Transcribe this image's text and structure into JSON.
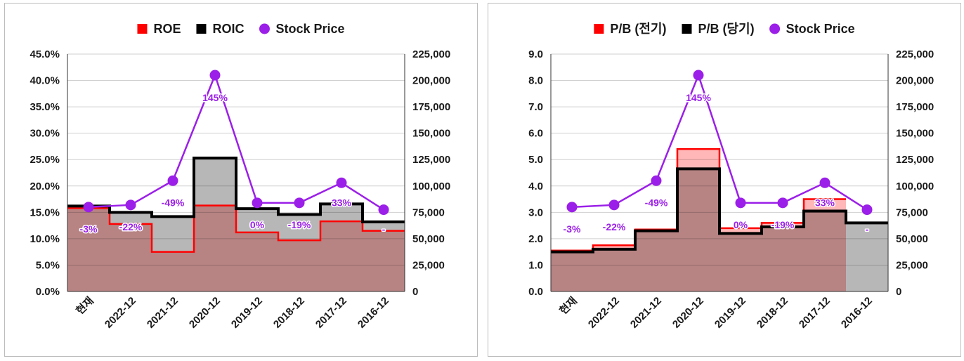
{
  "chart_data": [
    {
      "type": "line",
      "categories": [
        "현재",
        "2022-12",
        "2021-12",
        "2020-12",
        "2019-12",
        "2018-12",
        "2017-12",
        "2016-12"
      ],
      "legend_position": "top",
      "grid": true,
      "y_ticks": [
        "0.0%",
        "5.0%",
        "10.0%",
        "15.0%",
        "20.0%",
        "25.0%",
        "30.0%",
        "35.0%",
        "40.0%",
        "45.0%"
      ],
      "y2_ticks": [
        "0",
        "25,000",
        "50,000",
        "75,000",
        "100,000",
        "125,000",
        "150,000",
        "175,000",
        "200,000",
        "225,000"
      ],
      "ylim": [
        0,
        45
      ],
      "y2lim": [
        0,
        225000
      ],
      "series": [
        {
          "name": "ROE",
          "style": "step-area",
          "axis": "left",
          "color": "#ff0000",
          "fill": "#ffb3b3",
          "values": [
            15.8,
            12.8,
            7.5,
            16.3,
            11.2,
            9.7,
            13.3,
            11.5
          ]
        },
        {
          "name": "ROIC",
          "style": "step-area",
          "axis": "left",
          "color": "#000000",
          "fill": "#b3b3b3",
          "values": [
            16.2,
            15.0,
            14.2,
            25.3,
            15.7,
            14.6,
            16.6,
            13.2
          ]
        },
        {
          "name": "Stock Price",
          "style": "line-marker",
          "axis": "right",
          "color": "#9b1fe8",
          "values": [
            80000,
            82000,
            105000,
            205000,
            84000,
            84000,
            103000,
            77500
          ]
        }
      ],
      "point_labels": [
        "-3%",
        "-22%",
        "-49%",
        "145%",
        "0%",
        "-19%",
        "33%",
        "-"
      ]
    },
    {
      "type": "line",
      "categories": [
        "현재",
        "2022-12",
        "2021-12",
        "2020-12",
        "2019-12",
        "2018-12",
        "2017-12",
        "2016-12"
      ],
      "legend_position": "top",
      "grid": true,
      "y_ticks": [
        "0.0",
        "1.0",
        "2.0",
        "3.0",
        "4.0",
        "5.0",
        "6.0",
        "7.0",
        "8.0",
        "9.0"
      ],
      "y2_ticks": [
        "0",
        "25,000",
        "50,000",
        "75,000",
        "100,000",
        "125,000",
        "150,000",
        "175,000",
        "200,000",
        "225,000"
      ],
      "ylim": [
        0,
        9
      ],
      "y2lim": [
        0,
        225000
      ],
      "series": [
        {
          "name": "P/B (전기)",
          "style": "step-area",
          "axis": "left",
          "color": "#ff0000",
          "fill": "#ffb3b3",
          "values": [
            1.55,
            1.75,
            2.35,
            5.4,
            2.4,
            2.6,
            3.5,
            0
          ]
        },
        {
          "name": "P/B (당기)",
          "style": "step-area",
          "axis": "left",
          "color": "#000000",
          "fill": "#b3b3b3",
          "values": [
            1.5,
            1.6,
            2.3,
            4.65,
            2.2,
            2.45,
            3.05,
            2.6
          ]
        },
        {
          "name": "Stock Price",
          "style": "line-marker",
          "axis": "right",
          "color": "#9b1fe8",
          "values": [
            80000,
            82000,
            105000,
            205000,
            84000,
            84000,
            103000,
            77500
          ]
        }
      ],
      "point_labels": [
        "-3%",
        "-22%",
        "-49%",
        "145%",
        "0%",
        "-19%",
        "33%",
        "-"
      ]
    }
  ]
}
